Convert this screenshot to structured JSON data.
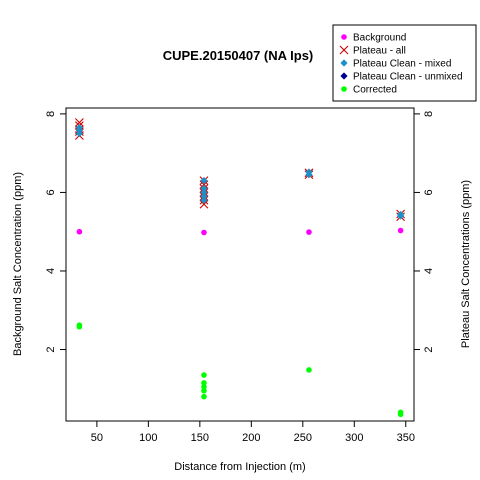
{
  "chart_data": {
    "type": "scatter",
    "title": "CUPE.20150407 (NA Ips)",
    "xlabel": "Distance from Injection (m)",
    "ylabel": "Background Salt Concentration (ppm)",
    "y2label": "Plateau Salt Concentrations (ppm)",
    "xlim": [
      20,
      358
    ],
    "ylim": [
      0.18,
      8.15
    ],
    "xticks": [
      "50",
      "100",
      "150",
      "200",
      "250",
      "300",
      "350"
    ],
    "yticks": [
      "2",
      "4",
      "6",
      "8"
    ],
    "y2ticks": [
      "2",
      "4",
      "6",
      "8"
    ],
    "legend_position": "top-right",
    "grid": false,
    "series": [
      {
        "name": "Background",
        "marker": "dot",
        "color": "#ff00ff",
        "points": [
          [
            33,
            5.0
          ],
          [
            154,
            4.98
          ],
          [
            256,
            4.99
          ],
          [
            345,
            5.03
          ]
        ]
      },
      {
        "name": "Plateau - all",
        "marker": "x",
        "color": "#d00000",
        "points": [
          [
            33,
            7.45
          ],
          [
            33,
            7.55
          ],
          [
            33,
            7.6
          ],
          [
            33,
            7.7
          ],
          [
            33,
            7.78
          ],
          [
            154,
            5.7
          ],
          [
            154,
            5.8
          ],
          [
            154,
            5.9
          ],
          [
            154,
            6.0
          ],
          [
            154,
            6.1
          ],
          [
            154,
            6.2
          ],
          [
            154,
            6.3
          ],
          [
            256,
            6.45
          ],
          [
            256,
            6.5
          ],
          [
            345,
            5.38
          ],
          [
            345,
            5.45
          ]
        ]
      },
      {
        "name": "Plateau Clean - mixed",
        "marker": "diamond",
        "color": "#1e90c8",
        "points": [
          [
            33,
            7.5
          ],
          [
            33,
            7.58
          ],
          [
            33,
            7.65
          ],
          [
            154,
            5.8
          ],
          [
            154,
            5.9
          ],
          [
            154,
            6.0
          ],
          [
            154,
            6.1
          ],
          [
            154,
            6.3
          ],
          [
            256,
            6.45
          ],
          [
            256,
            6.52
          ],
          [
            345,
            5.4
          ],
          [
            345,
            5.44
          ]
        ]
      },
      {
        "name": "Plateau Clean - unmixed",
        "marker": "diamond",
        "color": "#00008b",
        "points": []
      },
      {
        "name": "Corrected",
        "marker": "dot",
        "color": "#00ff00",
        "points": [
          [
            33,
            2.58
          ],
          [
            33,
            2.62
          ],
          [
            154,
            0.8
          ],
          [
            154,
            0.95
          ],
          [
            154,
            1.05
          ],
          [
            154,
            1.15
          ],
          [
            154,
            1.35
          ],
          [
            256,
            1.48
          ],
          [
            345,
            0.35
          ],
          [
            345,
            0.4
          ]
        ]
      }
    ]
  }
}
